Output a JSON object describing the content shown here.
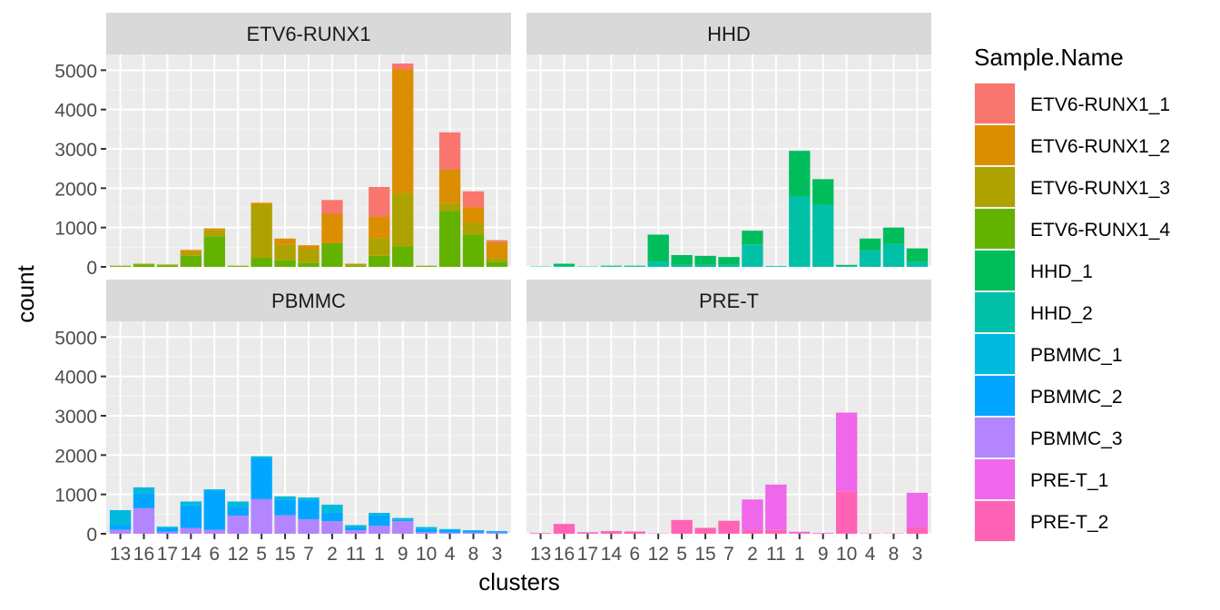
{
  "chart_data": {
    "type": "bar",
    "stacked": true,
    "xlabel": "clusters",
    "ylabel": "count",
    "ylim": [
      0,
      5400
    ],
    "y_ticks": [
      0,
      1000,
      2000,
      3000,
      4000,
      5000
    ],
    "grid": true,
    "legend_position": "right",
    "legend_title": "Sample.Name",
    "categories": [
      "13",
      "16",
      "17",
      "14",
      "6",
      "12",
      "5",
      "15",
      "7",
      "2",
      "11",
      "1",
      "9",
      "10",
      "4",
      "8",
      "3"
    ],
    "series": [
      {
        "name": "ETV6-RUNX1_1",
        "color": "#F8766D"
      },
      {
        "name": "ETV6-RUNX1_2",
        "color": "#DB8E00"
      },
      {
        "name": "ETV6-RUNX1_3",
        "color": "#AEA200"
      },
      {
        "name": "ETV6-RUNX1_4",
        "color": "#64B200"
      },
      {
        "name": "HHD_1",
        "color": "#00BD5C"
      },
      {
        "name": "HHD_2",
        "color": "#00C1A7"
      },
      {
        "name": "PBMMC_1",
        "color": "#00BADE"
      },
      {
        "name": "PBMMC_2",
        "color": "#00A6FF"
      },
      {
        "name": "PBMMC_3",
        "color": "#B385FF"
      },
      {
        "name": "PRE-T_1",
        "color": "#EF67EB"
      },
      {
        "name": "PRE-T_2",
        "color": "#FF63B6"
      }
    ],
    "facets": [
      {
        "name": "ETV6-RUNX1",
        "data": {
          "ETV6-RUNX1_1": [
            0,
            0,
            0,
            0,
            0,
            0,
            0,
            0,
            0,
            350,
            0,
            750,
            150,
            0,
            950,
            400,
            50
          ],
          "ETV6-RUNX1_2": [
            0,
            0,
            0,
            50,
            50,
            0,
            50,
            150,
            100,
            750,
            0,
            550,
            3150,
            0,
            850,
            400,
            400
          ],
          "ETV6-RUNX1_3": [
            10,
            20,
            20,
            100,
            150,
            10,
            1350,
            400,
            350,
            0,
            50,
            450,
            1350,
            10,
            200,
            300,
            100
          ],
          "ETV6-RUNX1_4": [
            20,
            60,
            40,
            280,
            780,
            20,
            230,
            170,
            100,
            600,
            30,
            280,
            520,
            20,
            1420,
            820,
            130
          ]
        }
      },
      {
        "name": "HHD",
        "data": {
          "HHD_1": [
            0,
            60,
            0,
            10,
            10,
            700,
            250,
            230,
            200,
            350,
            0,
            1150,
            650,
            30,
            300,
            420,
            350
          ],
          "HHD_2": [
            10,
            20,
            10,
            20,
            20,
            120,
            50,
            50,
            50,
            570,
            20,
            1800,
            1580,
            20,
            420,
            580,
            120
          ]
        }
      },
      {
        "name": "PBMMC",
        "data": {
          "PBMMC_1": [
            370,
            150,
            40,
            100,
            30,
            130,
            40,
            80,
            50,
            200,
            50,
            50,
            50,
            50,
            20,
            10,
            10
          ],
          "PBMMC_2": [
            130,
            380,
            90,
            570,
            1000,
            230,
            1050,
            400,
            500,
            220,
            80,
            280,
            30,
            80,
            70,
            50,
            30
          ],
          "PBMMC_3": [
            100,
            650,
            50,
            150,
            100,
            460,
            880,
            470,
            370,
            320,
            90,
            200,
            320,
            40,
            30,
            30,
            30
          ]
        }
      },
      {
        "name": "PRE-T",
        "data": {
          "PRE-T_1": [
            10,
            0,
            20,
            10,
            10,
            0,
            0,
            0,
            0,
            770,
            1150,
            30,
            10,
            2000,
            0,
            0,
            870
          ],
          "PRE-T_2": [
            10,
            250,
            20,
            60,
            50,
            10,
            350,
            150,
            330,
            100,
            100,
            20,
            10,
            1080,
            10,
            10,
            170
          ]
        }
      }
    ]
  }
}
